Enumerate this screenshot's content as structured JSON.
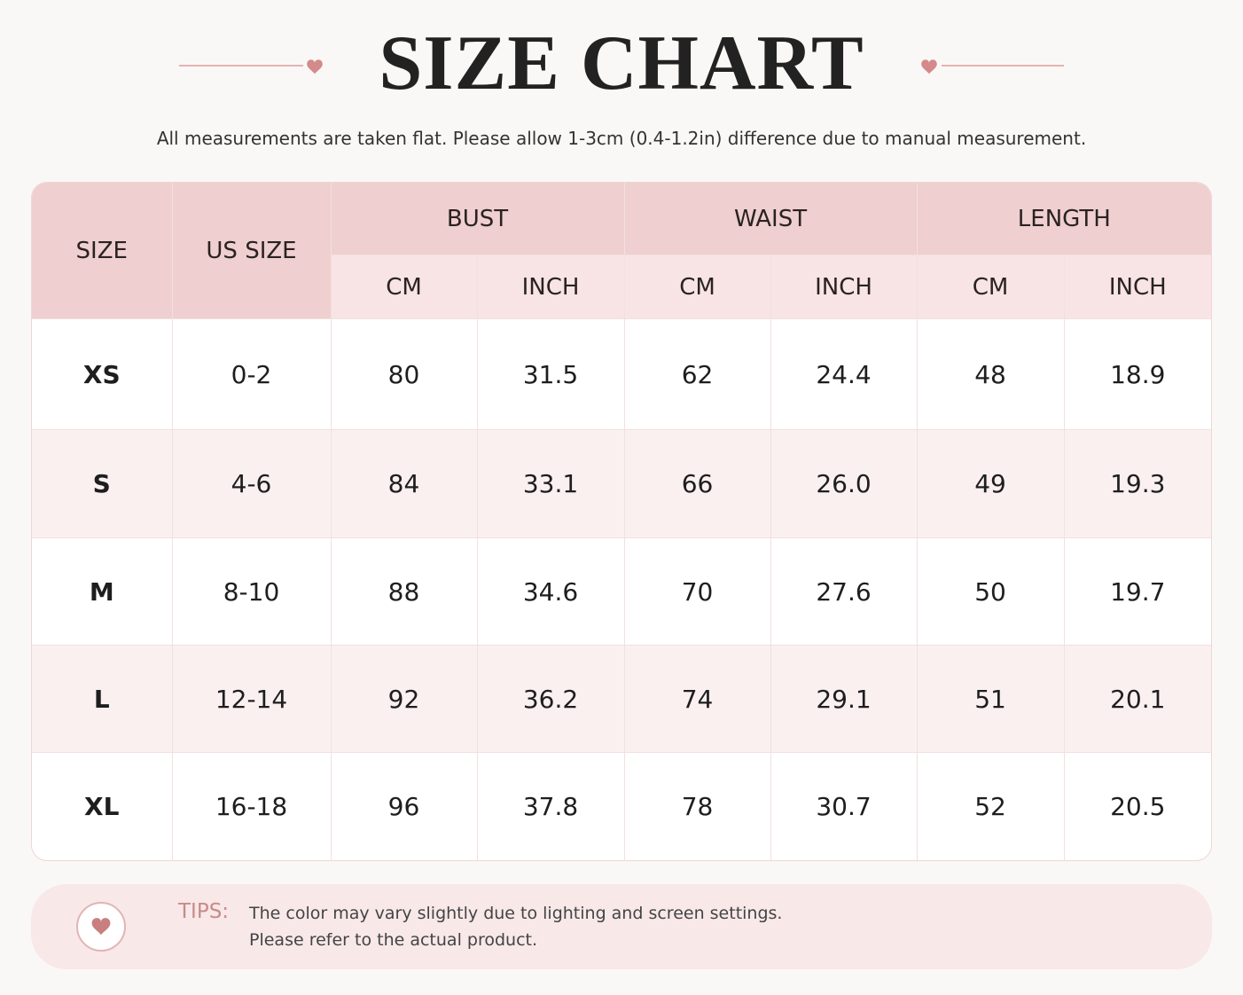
{
  "header": {
    "title": "SIZE CHART",
    "subtitle": "All measurements are taken flat. Please allow 1-3cm (0.4-1.2in) difference due to manual measurement."
  },
  "table": {
    "columns": [
      "SIZE",
      "US SIZE"
    ],
    "groups": [
      {
        "label": "BUST",
        "subcolumns": [
          "CM",
          "INCH"
        ]
      },
      {
        "label": "WAIST",
        "subcolumns": [
          "CM",
          "INCH"
        ]
      },
      {
        "label": "LENGTH",
        "subcolumns": [
          "CM",
          "INCH"
        ]
      }
    ],
    "rows": [
      [
        "XS",
        "0-2",
        "80",
        "31.5",
        "62",
        "24.4",
        "48",
        "18.9"
      ],
      [
        "S",
        "4-6",
        "84",
        "33.1",
        "66",
        "26.0",
        "49",
        "19.3"
      ],
      [
        "M",
        "8-10",
        "88",
        "34.6",
        "70",
        "27.6",
        "50",
        "19.7"
      ],
      [
        "L",
        "12-14",
        "92",
        "36.2",
        "74",
        "29.1",
        "51",
        "20.1"
      ],
      [
        "XL",
        "16-18",
        "96",
        "37.8",
        "78",
        "30.7",
        "52",
        "20.5"
      ]
    ]
  },
  "tips": {
    "label": "TIPS:",
    "lines": [
      "The color may vary slightly due to lighting and screen settings.",
      "Please refer to the actual product."
    ]
  }
}
